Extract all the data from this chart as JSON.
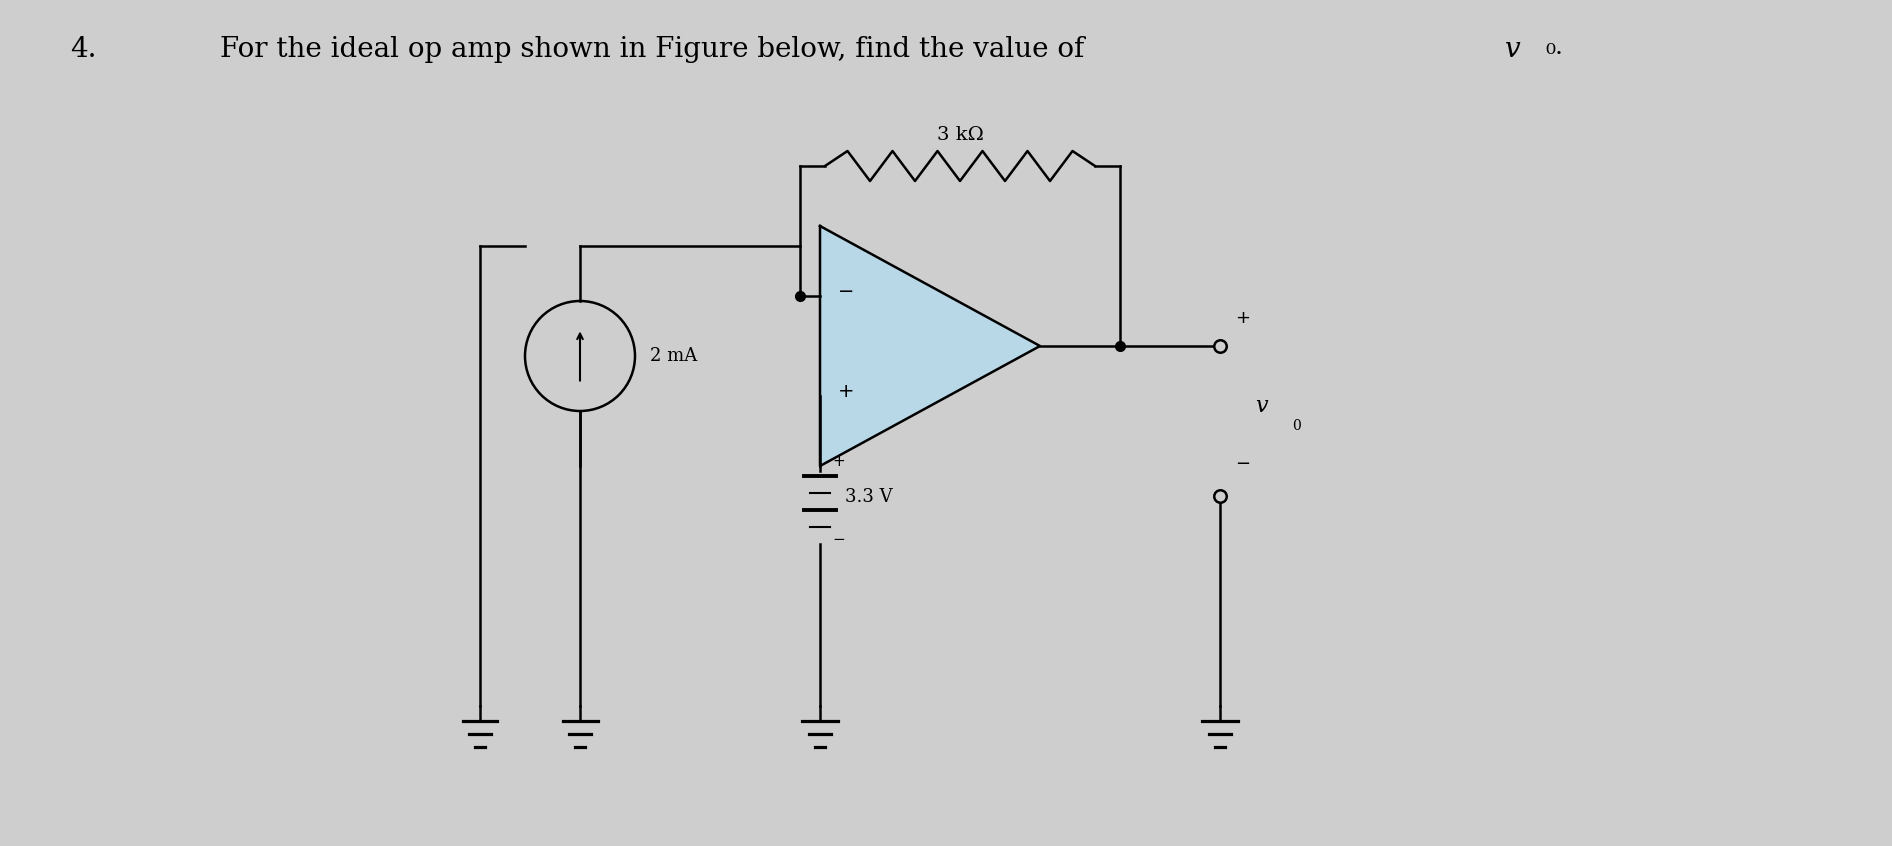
{
  "background_color": "#cecece",
  "title_number": "4.",
  "title_text": "For the ideal op amp shown in Figure below, find the value of ",
  "title_vo": "v₀",
  "title_dot": ".",
  "title_fontsize": 20,
  "fig_width": 18.92,
  "fig_height": 8.46,
  "resistor_label": "3 kΩ",
  "current_label": "2 mA",
  "voltage_label": "3.3 V",
  "vo_label": "v₀",
  "wire_color": "#000000",
  "opamp_fill": "#b8d8e8",
  "opamp_edge": "#000000",
  "dot_size": 7,
  "lw": 1.8
}
